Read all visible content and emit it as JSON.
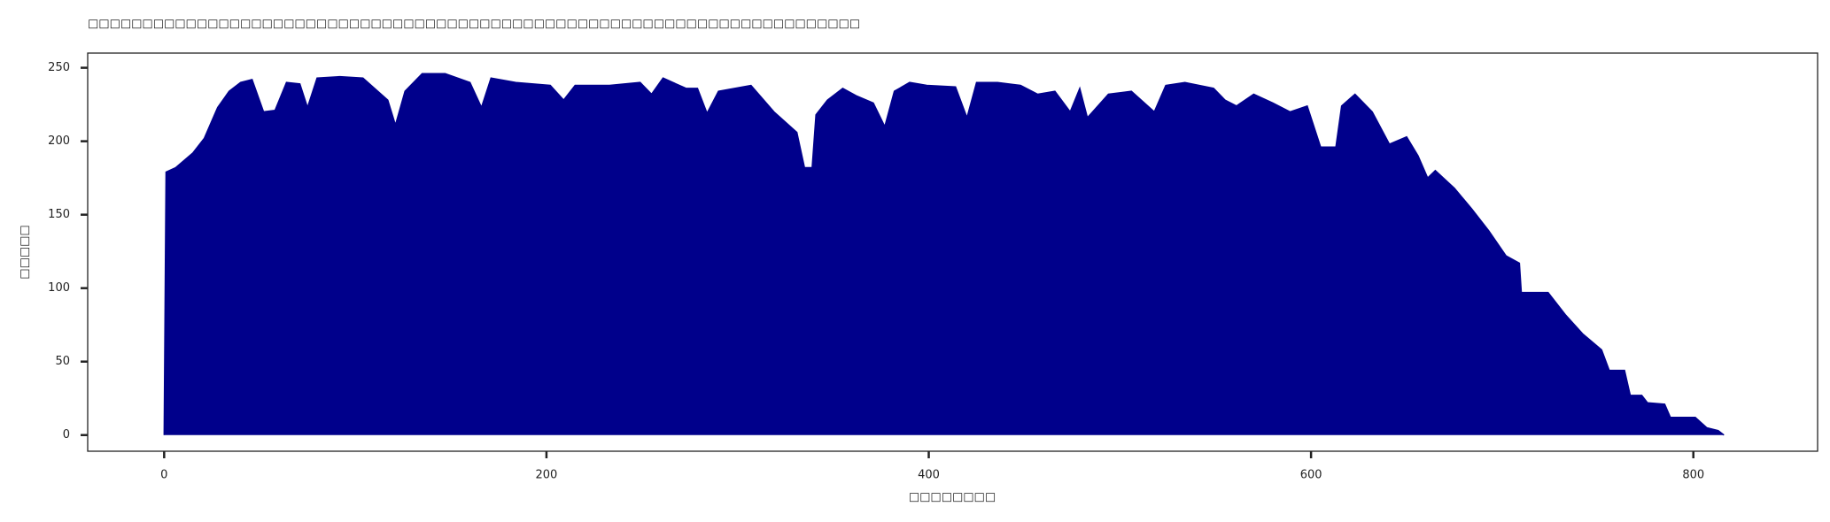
{
  "chart_data": {
    "type": "area",
    "title": "□□□□□□□□□□□□□□□□□□□□□□□□□□□□□□□□□□□□□□□□□□□□□□□□□□□□□□□□□□□□□□□□□□□□□□□",
    "x_label": "□□□□□□□□",
    "y_label": "□□□□□",
    "color": "#00008b",
    "xlim": [
      -40,
      865
    ],
    "ylim": [
      -11,
      260
    ],
    "xticks": [
      0,
      200,
      400,
      600,
      800
    ],
    "yticks": [
      0,
      50,
      100,
      150,
      200,
      250
    ],
    "x": [
      0,
      1,
      6,
      15,
      21,
      28,
      34,
      40,
      46,
      52,
      58,
      64,
      71,
      75,
      80,
      92,
      104,
      117,
      121,
      126,
      135,
      147,
      160,
      166,
      171,
      184,
      202,
      209,
      215,
      233,
      249,
      255,
      261,
      273,
      279,
      284,
      290,
      307,
      319,
      331,
      335,
      339,
      341,
      347,
      355,
      362,
      371,
      377,
      382,
      390,
      399,
      414,
      420,
      425,
      436,
      448,
      457,
      466,
      474,
      479,
      483,
      494,
      506,
      518,
      524,
      534,
      549,
      555,
      561,
      570,
      580,
      589,
      598,
      605,
      613,
      616,
      623,
      632,
      641,
      650,
      656,
      661,
      665,
      675,
      684,
      693,
      702,
      709,
      710,
      724,
      733,
      742,
      752,
      756,
      764,
      767,
      773,
      776,
      785,
      788,
      801,
      807,
      813,
      816
    ],
    "values": [
      0,
      179,
      182,
      192,
      202,
      223,
      234,
      240,
      242,
      220,
      221,
      240,
      239,
      223,
      243,
      244,
      243,
      228,
      211,
      234,
      246,
      246,
      240,
      223,
      243,
      240,
      238,
      228,
      238,
      238,
      240,
      232,
      243,
      236,
      236,
      219,
      234,
      238,
      220,
      206,
      182,
      182,
      218,
      228,
      236,
      231,
      226,
      210,
      234,
      240,
      238,
      237,
      216,
      240,
      240,
      238,
      232,
      234,
      220,
      236,
      216,
      232,
      234,
      220,
      238,
      240,
      236,
      228,
      224,
      232,
      226,
      220,
      224,
      196,
      196,
      224,
      232,
      220,
      198,
      203,
      190,
      175,
      180,
      168,
      154,
      139,
      122,
      117,
      97,
      97,
      82,
      69,
      58,
      44,
      44,
      27,
      27,
      22,
      21,
      12,
      12,
      5,
      3,
      0
    ]
  }
}
